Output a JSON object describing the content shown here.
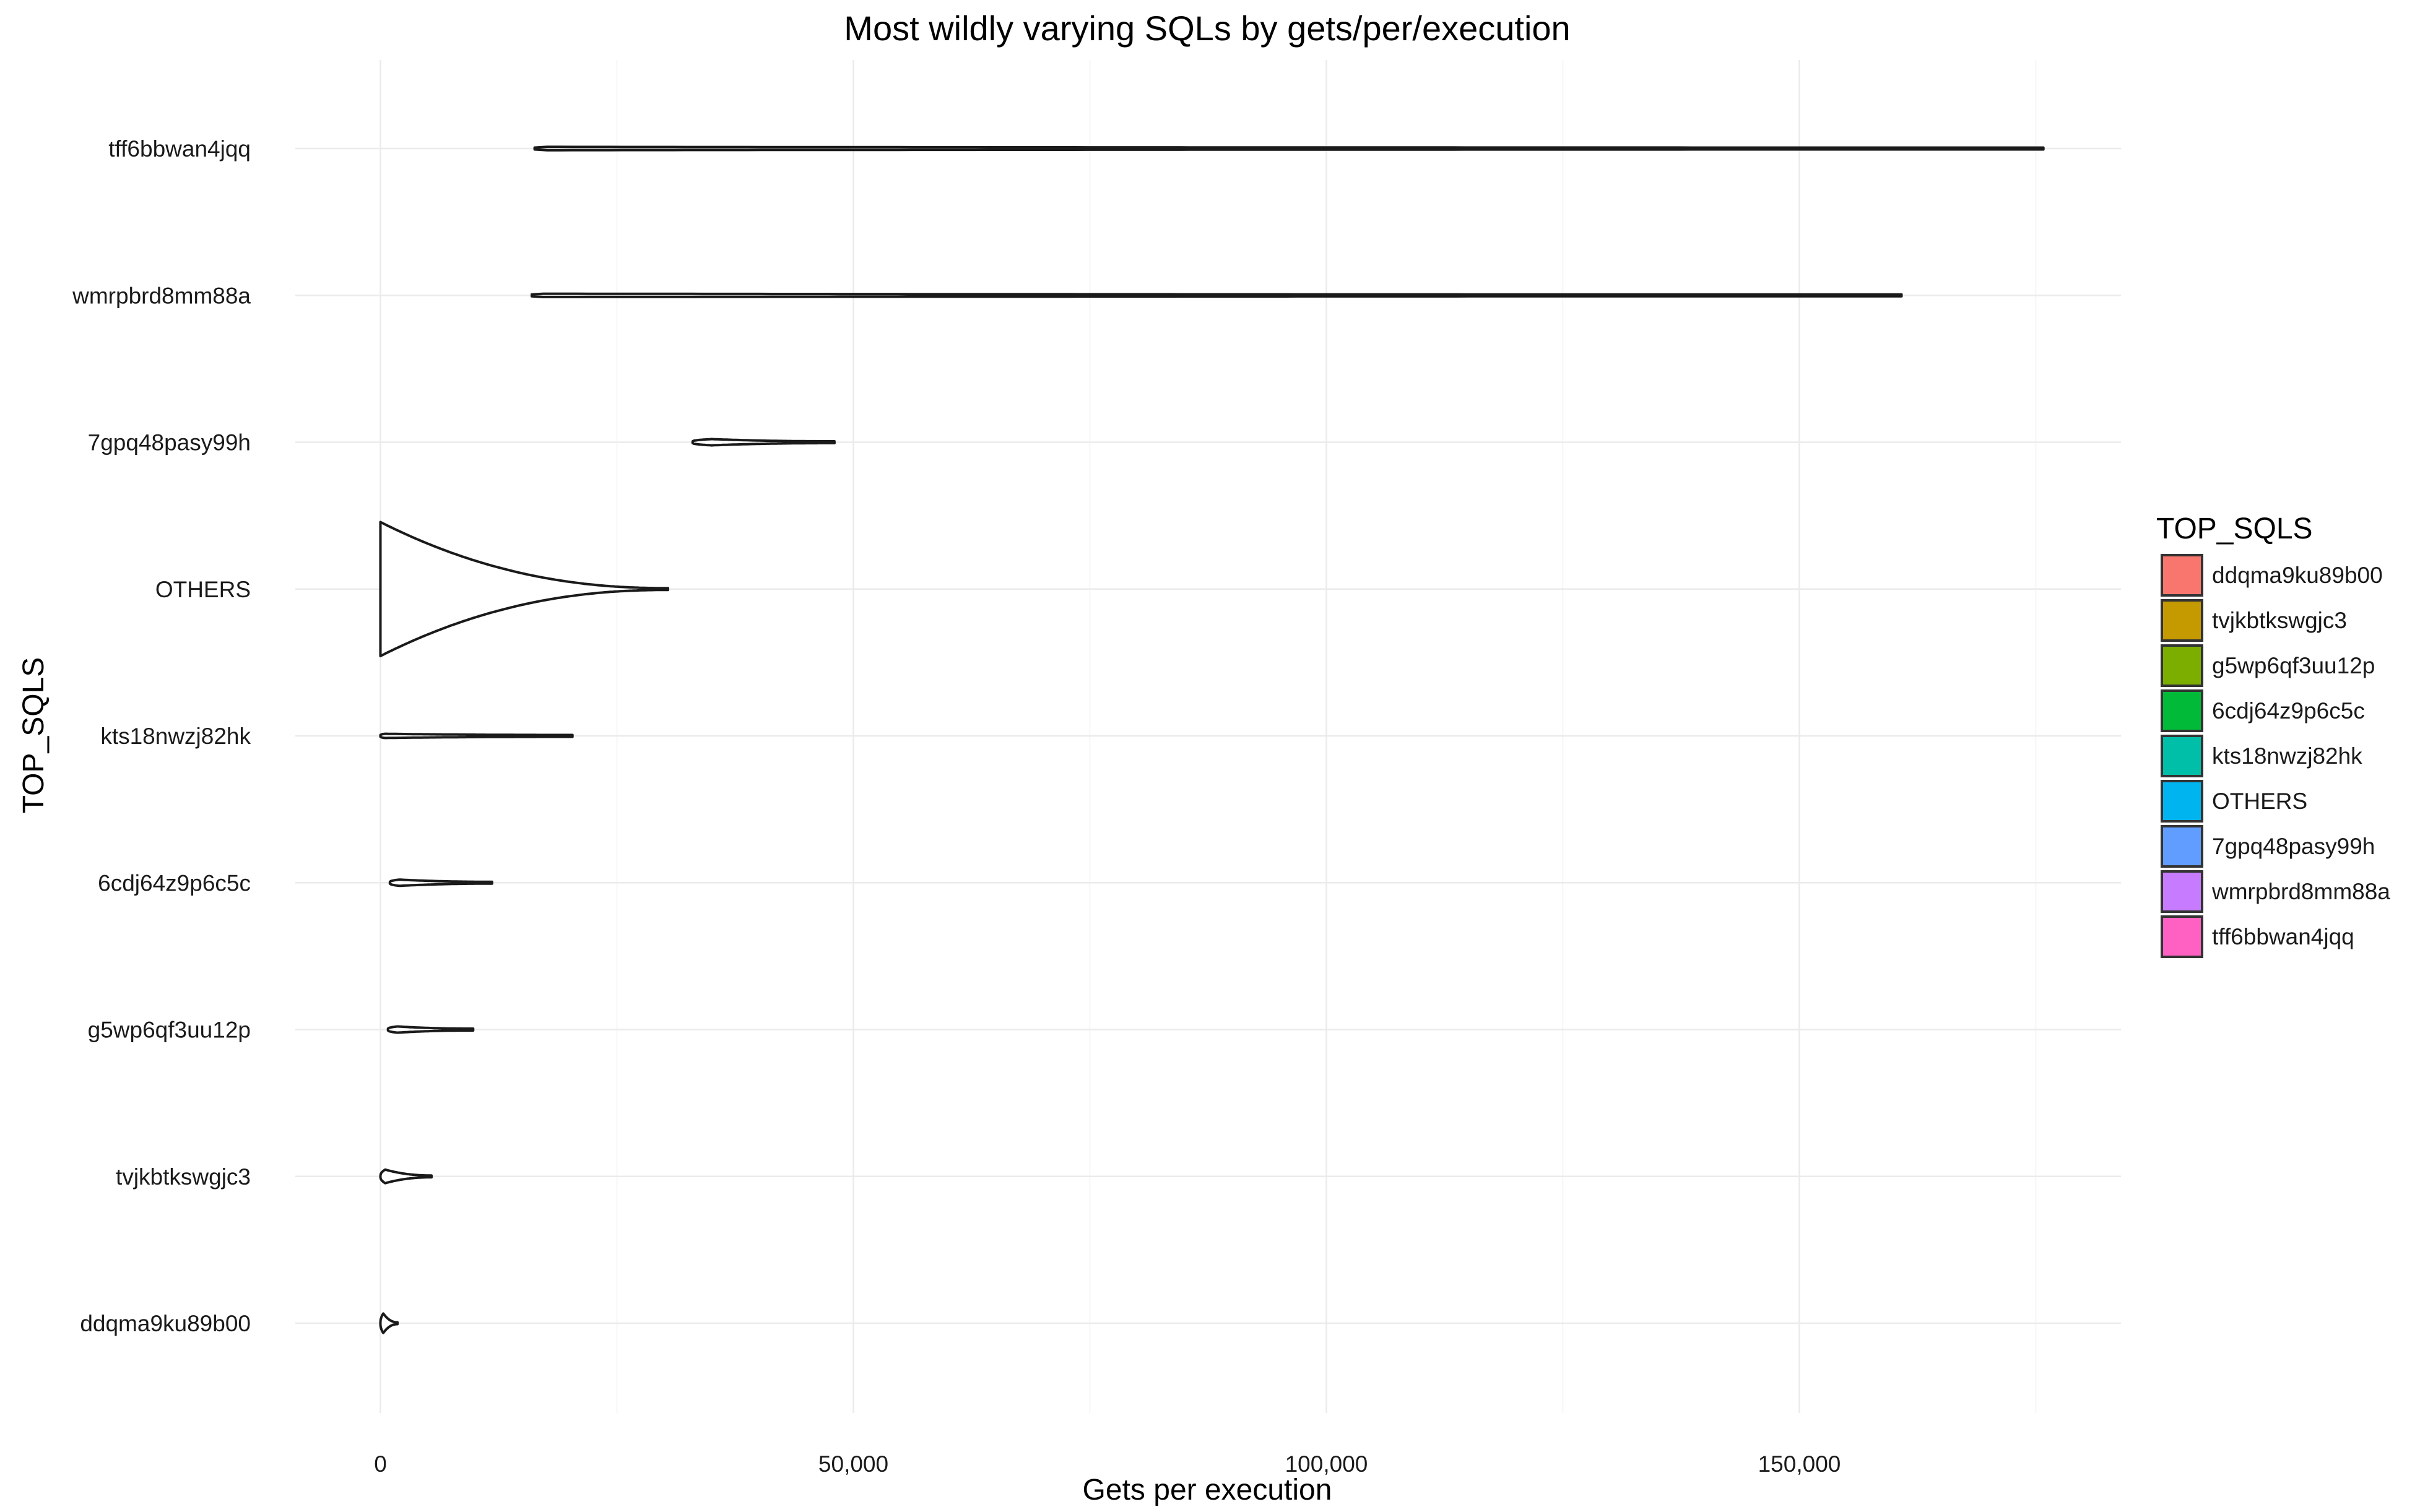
{
  "chart_data": {
    "type": "violin",
    "orientation": "horizontal",
    "title": "Most wildly varying SQLs by gets/per/execution",
    "xlabel": "Gets per execution",
    "ylabel": "TOP_SQLS",
    "xlim": [
      -9000,
      184000
    ],
    "x_ticks": [
      0,
      50000,
      100000,
      150000
    ],
    "x_tick_labels": [
      "0",
      "50,000",
      "100,000",
      "150,000"
    ],
    "grid": true,
    "legend": {
      "title": "TOP_SQLS",
      "position": "right"
    },
    "categories": [
      "tff6bbwan4jqq",
      "wmrpbrd8mm88a",
      "7gpq48pasy99h",
      "OTHERS",
      "kts18nwzj82hk",
      "6cdj64z9p6c5c",
      "g5wp6qf3uu12p",
      "tvjkbtkswgjc3",
      "ddqma9ku89b00"
    ],
    "series": [
      {
        "name": "ddqma9ku89b00",
        "color": "#F8766D",
        "min": 0,
        "max": 1800,
        "mode": 300,
        "max_half_width": 0.06
      },
      {
        "name": "tvjkbtkswgjc3",
        "color": "#C49A00",
        "min": 0,
        "max": 5400,
        "mode": 500,
        "max_half_width": 0.04
      },
      {
        "name": "g5wp6qf3uu12p",
        "color": "#7CAE00",
        "min": 800,
        "max": 9800,
        "mode": 1800,
        "max_half_width": 0.015
      },
      {
        "name": "6cdj64z9p6c5c",
        "color": "#00BA38",
        "min": 1000,
        "max": 11800,
        "mode": 2000,
        "max_half_width": 0.015
      },
      {
        "name": "kts18nwzj82hk",
        "color": "#00BFA8",
        "min": 0,
        "max": 20300,
        "mode": 500,
        "max_half_width": 0.008
      },
      {
        "name": "OTHERS",
        "color": "#00B4EF",
        "min": 0,
        "max": 30400,
        "mode": 0,
        "max_half_width": 0.45
      },
      {
        "name": "7gpq48pasy99h",
        "color": "#619CFF",
        "min": 33000,
        "max": 48000,
        "mode": 35000,
        "max_half_width": 0.015
      },
      {
        "name": "wmrpbrd8mm88a",
        "color": "#C77CFF",
        "min": 16000,
        "max": 160800,
        "mode": 17000,
        "max_half_width": 0.005
      },
      {
        "name": "tff6bbwan4jqq",
        "color": "#FF61C3",
        "min": 16300,
        "max": 175800,
        "mode": 17000,
        "max_half_width": 0.005
      }
    ]
  }
}
